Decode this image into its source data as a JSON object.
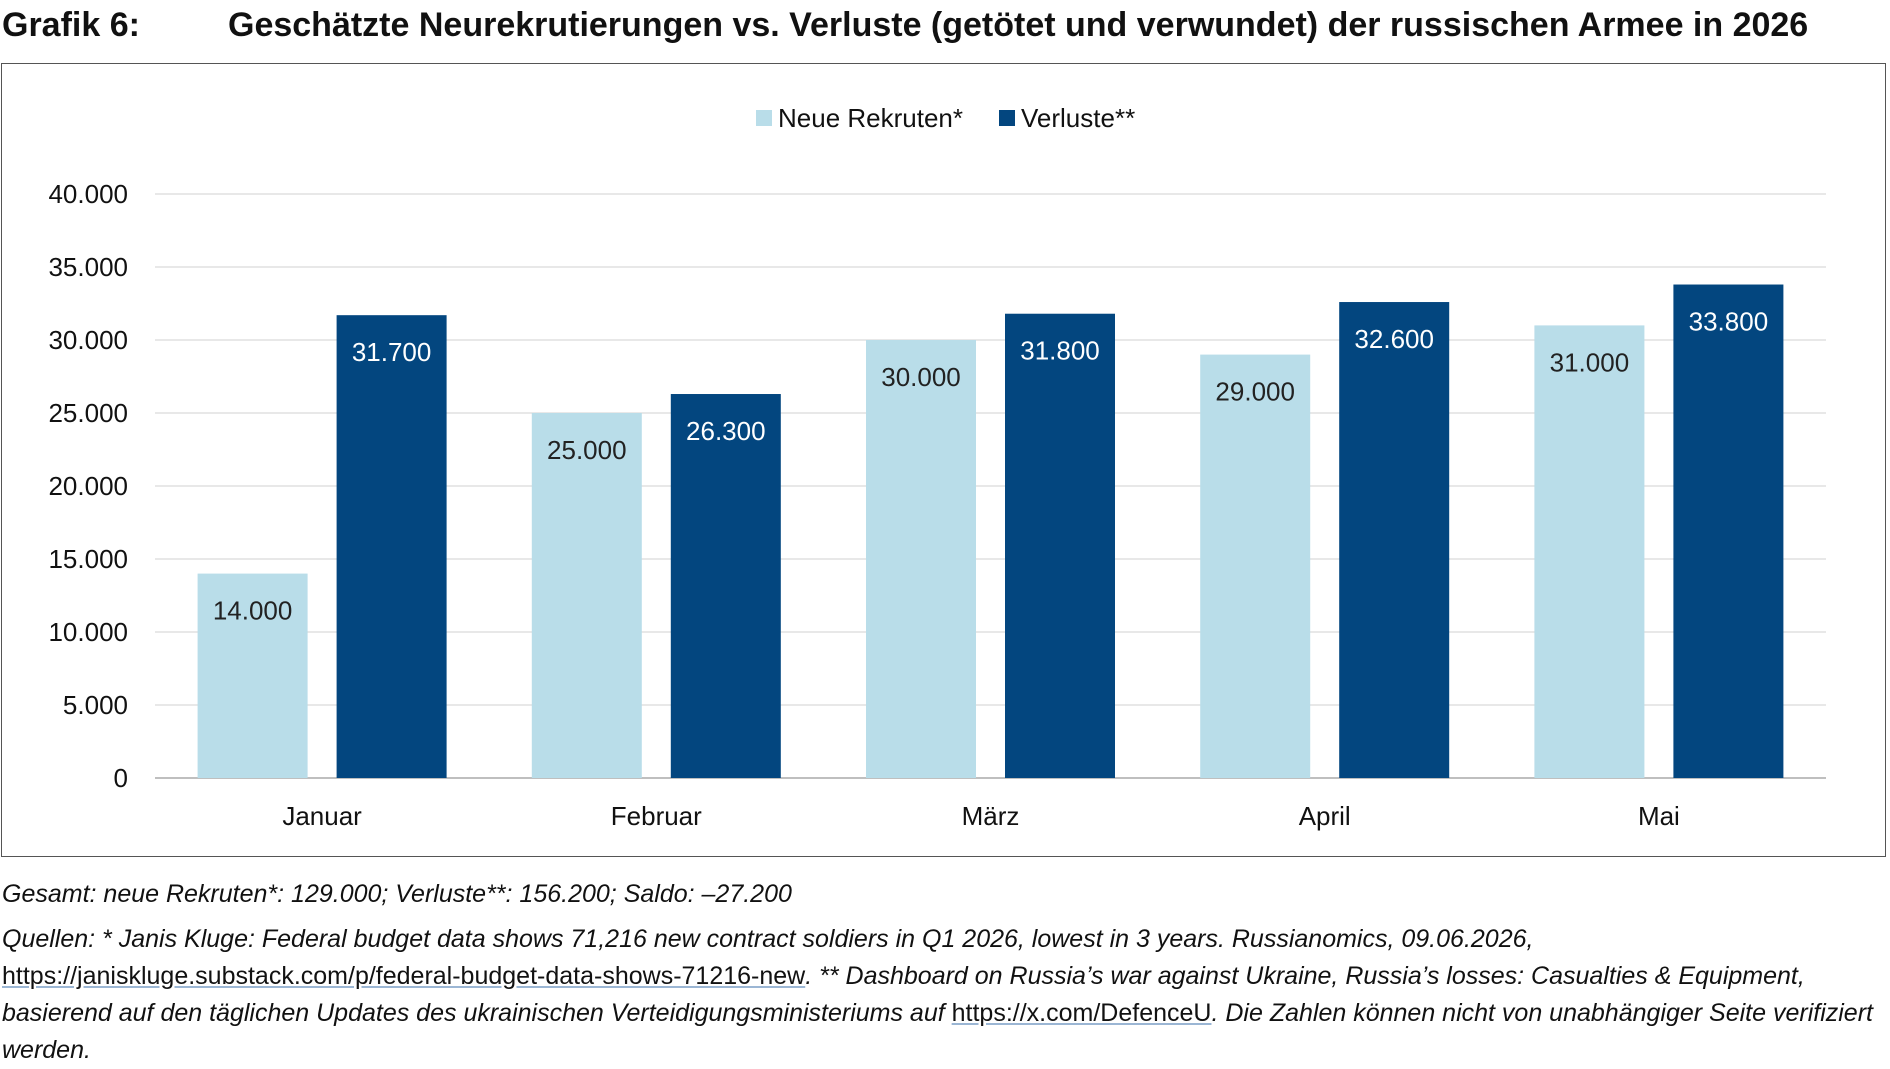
{
  "figure_label": "Grafik 6:",
  "title": "Geschätzte Neurekrutierungen vs. Verluste (getötet und verwundet) der russischen Armee in 2026",
  "chart_data": {
    "type": "bar",
    "categories": [
      "Januar",
      "Februar",
      "März",
      "April",
      "Mai"
    ],
    "series": [
      {
        "name": "Neue Rekruten*",
        "color": "#b9dde9",
        "label_color": "#222222",
        "values": [
          14000,
          25000,
          30000,
          29000,
          31000
        ],
        "labels": [
          "14.000",
          "25.000",
          "30.000",
          "29.000",
          "31.000"
        ]
      },
      {
        "name": "Verluste**",
        "color": "#03467f",
        "label_color": "#ffffff",
        "values": [
          31700,
          26300,
          31800,
          32600,
          33800
        ],
        "labels": [
          "31.700",
          "26.300",
          "31.800",
          "32.600",
          "33.800"
        ]
      }
    ],
    "ylim": [
      0,
      40000
    ],
    "yticks": [
      0,
      5000,
      10000,
      15000,
      20000,
      25000,
      30000,
      35000,
      40000
    ],
    "ytick_labels": [
      "0",
      "5.000",
      "10.000",
      "15.000",
      "20.000",
      "25.000",
      "30.000",
      "35.000",
      "40.000"
    ],
    "grid": true,
    "legend_position": "top-center"
  },
  "footer": {
    "total": "Gesamt: neue Rekruten*: 129.000; Verluste**: 156.200; Saldo: –27.200",
    "sources_part1": "Quellen: * Janis Kluge: Federal budget data shows 71,216 new contract soldiers in Q1 2026, lowest in 3 years. Russianomics, 09.06.2026, ",
    "link1": "https://janiskluge.substack.com/p/federal-budget-data-shows-71216-new",
    "sources_part2": ". ** Dashboard on Russia’s war against Ukraine, Russia’s losses: Casualties & Equipment, basierend auf den täglichen Updates des ukrainischen Verteidigungsministeriums auf ",
    "link2": "https://x.com/DefenceU",
    "sources_part3": ". Die Zahlen können nicht von unabhängiger Seite verifiziert werden."
  }
}
